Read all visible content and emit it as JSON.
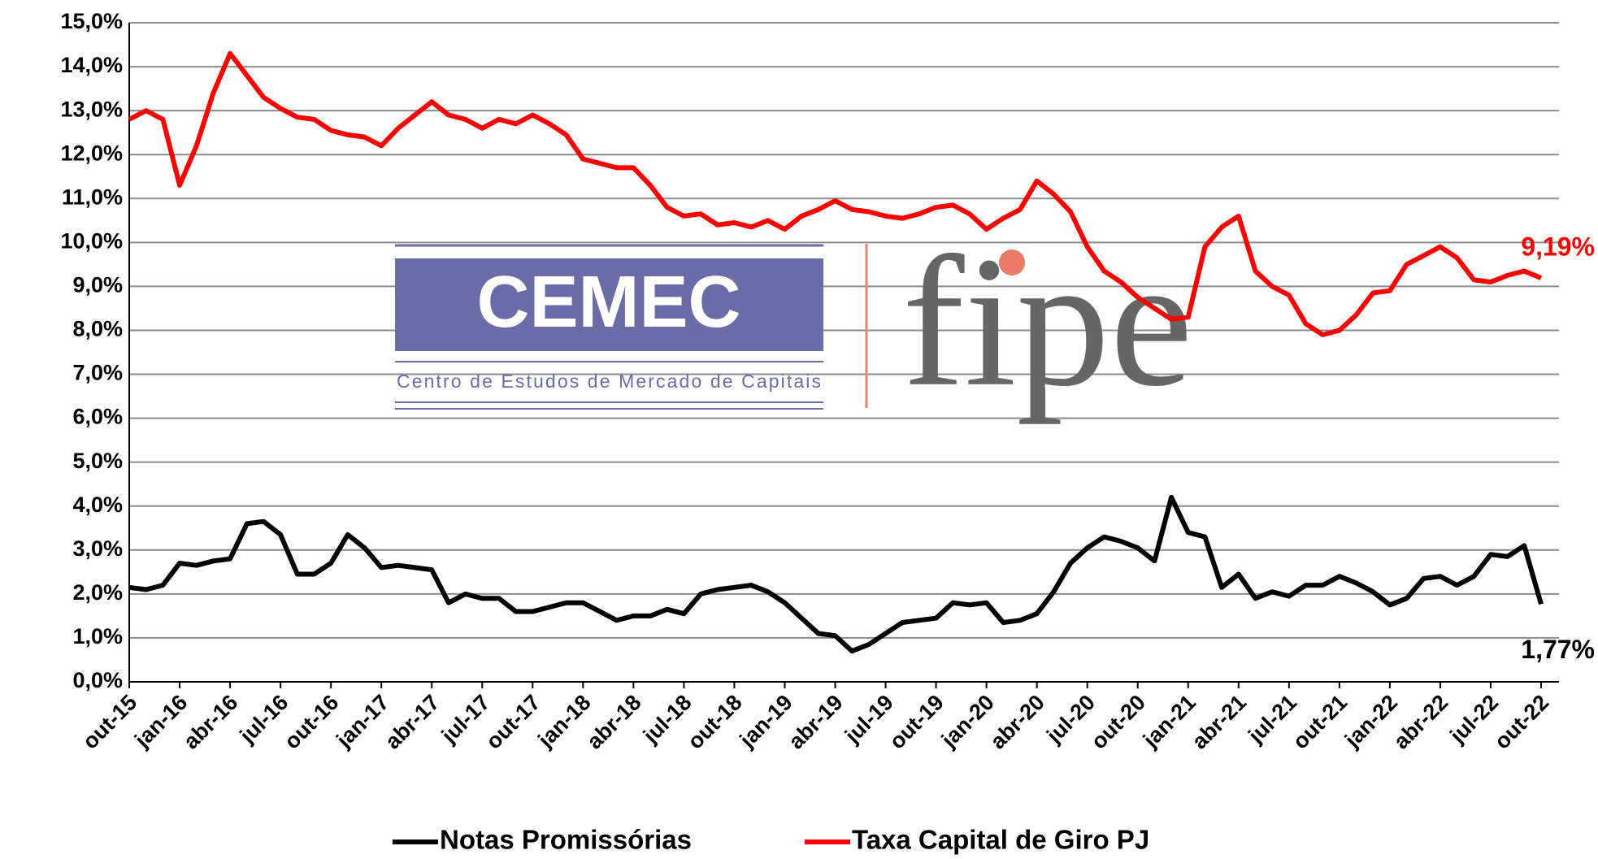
{
  "chart_data": {
    "type": "line",
    "categories": [
      "out-15",
      null,
      null,
      "jan-16",
      null,
      null,
      "abr-16",
      null,
      null,
      "jul-16",
      null,
      null,
      "out-16",
      null,
      null,
      "jan-17",
      null,
      null,
      "abr-17",
      null,
      null,
      "jul-17",
      null,
      null,
      "out-17",
      null,
      null,
      "jan-18",
      null,
      null,
      "abr-18",
      null,
      null,
      "jul-18",
      null,
      null,
      "out-18",
      null,
      null,
      "jan-19",
      null,
      null,
      "abr-19",
      null,
      null,
      "jul-19",
      null,
      null,
      "out-19",
      null,
      null,
      "jan-20",
      null,
      null,
      "abr-20",
      null,
      null,
      "jul-20",
      null,
      null,
      "out-20",
      null,
      null,
      "jan-21",
      null,
      null,
      "abr-21",
      null,
      null,
      "jul-21",
      null,
      null,
      "out-21",
      null,
      null,
      "jan-22",
      null,
      null,
      "abr-22",
      null,
      null,
      "jul-22",
      null,
      null,
      "out-22"
    ],
    "series": [
      {
        "name": "Notas Promissórias",
        "color": "#000000",
        "end_label": "1,77%",
        "values": [
          2.15,
          2.1,
          2.2,
          2.7,
          2.65,
          2.75,
          2.8,
          3.6,
          3.65,
          3.35,
          2.45,
          2.45,
          2.7,
          3.35,
          3.05,
          2.6,
          2.65,
          2.6,
          2.55,
          1.8,
          2.0,
          1.9,
          1.9,
          1.6,
          1.6,
          1.7,
          1.8,
          1.8,
          1.6,
          1.4,
          1.5,
          1.5,
          1.65,
          1.55,
          2.0,
          2.1,
          2.15,
          2.2,
          2.05,
          1.8,
          1.45,
          1.1,
          1.05,
          0.7,
          0.85,
          1.1,
          1.35,
          1.4,
          1.45,
          1.8,
          1.75,
          1.8,
          1.35,
          1.4,
          1.55,
          2.05,
          2.7,
          3.05,
          3.3,
          3.2,
          3.05,
          2.75,
          4.2,
          3.4,
          3.3,
          2.15,
          2.45,
          1.9,
          2.05,
          1.95,
          2.2,
          2.2,
          2.4,
          2.25,
          2.05,
          1.75,
          1.9,
          2.35,
          2.4,
          2.2,
          2.4,
          2.9,
          2.85,
          3.1,
          1.77
        ]
      },
      {
        "name": "Taxa Capital de Giro PJ",
        "color": "#ff0000",
        "end_label": "9,19%",
        "values": [
          12.8,
          13.0,
          12.8,
          11.3,
          12.2,
          13.4,
          14.3,
          13.8,
          13.3,
          13.05,
          12.85,
          12.8,
          12.55,
          12.45,
          12.4,
          12.2,
          12.6,
          12.9,
          13.2,
          12.9,
          12.8,
          12.6,
          12.8,
          12.7,
          12.9,
          12.7,
          12.45,
          11.9,
          11.8,
          11.7,
          11.7,
          11.3,
          10.8,
          10.6,
          10.65,
          10.4,
          10.45,
          10.35,
          10.5,
          10.3,
          10.6,
          10.75,
          10.95,
          10.75,
          10.7,
          10.6,
          10.55,
          10.65,
          10.8,
          10.85,
          10.65,
          10.3,
          10.55,
          10.75,
          11.4,
          11.1,
          10.7,
          9.9,
          9.35,
          9.1,
          8.75,
          8.5,
          8.25,
          8.3,
          9.9,
          10.35,
          10.6,
          9.35,
          9.0,
          8.8,
          8.15,
          7.9,
          8.0,
          8.35,
          8.85,
          8.9,
          9.5,
          9.7,
          9.9,
          9.65,
          9.15,
          9.1,
          9.25,
          9.35,
          9.19
        ]
      }
    ],
    "ylim": [
      0,
      15
    ],
    "yticks": [
      {
        "value": 0,
        "label": "0,0%"
      },
      {
        "value": 1,
        "label": "1,0%"
      },
      {
        "value": 2,
        "label": "2,0%"
      },
      {
        "value": 3,
        "label": "3,0%"
      },
      {
        "value": 4,
        "label": "4,0%"
      },
      {
        "value": 5,
        "label": "5,0%"
      },
      {
        "value": 6,
        "label": "6,0%"
      },
      {
        "value": 7,
        "label": "7,0%"
      },
      {
        "value": 8,
        "label": "8,0%"
      },
      {
        "value": 9,
        "label": "9,0%"
      },
      {
        "value": 10,
        "label": "10,0%"
      },
      {
        "value": 11,
        "label": "11,0%"
      },
      {
        "value": 12,
        "label": "12,0%"
      },
      {
        "value": 13,
        "label": "13,0%"
      },
      {
        "value": 14,
        "label": "14,0%"
      },
      {
        "value": 15,
        "label": "15,0%"
      }
    ],
    "grid": true,
    "legend": "bottom"
  },
  "logo": {
    "name": "CEMEC",
    "subtitle": "Centro de Estudos de Mercado de Capitais",
    "partner": "fipe"
  }
}
